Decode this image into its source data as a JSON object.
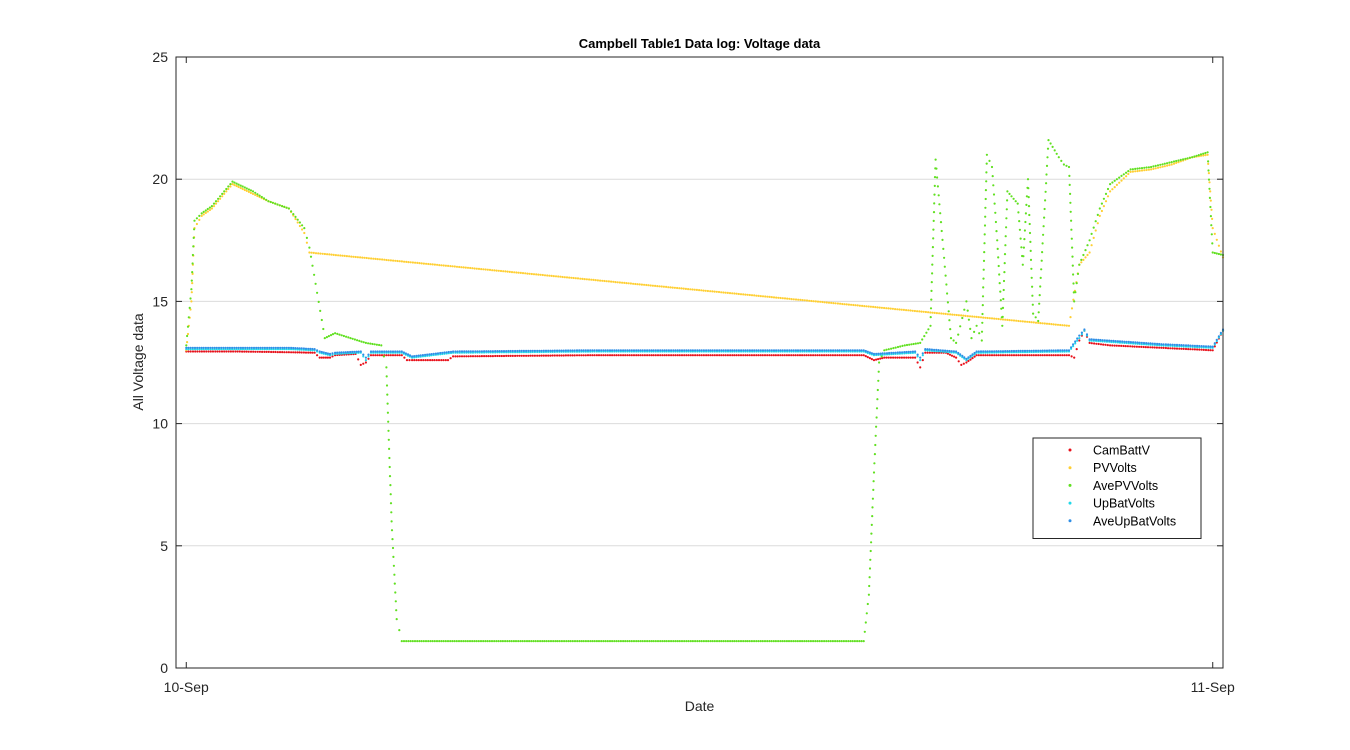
{
  "chart_data": {
    "type": "scatter",
    "title": "Campbell Table1 Data log: Voltage data",
    "xlabel": "Date",
    "ylabel": "All Voltage data",
    "x_tick_labels": [
      "10-Sep",
      "11-Sep"
    ],
    "x_range_fraction_of_day": [
      -0.01,
      1.01
    ],
    "ylim": [
      0,
      25
    ],
    "y_ticks": [
      0,
      5,
      10,
      15,
      20,
      25
    ],
    "grid": "horizontal",
    "legend_position": "lower-right",
    "x_unit": "fraction of day since 10-Sep",
    "series": [
      {
        "name": "CamBattV",
        "color": "#e8101a",
        "points": [
          [
            0.0,
            12.95
          ],
          [
            0.05,
            12.95
          ],
          [
            0.1,
            12.92
          ],
          [
            0.125,
            12.9
          ],
          [
            0.13,
            12.7
          ],
          [
            0.14,
            12.7
          ],
          [
            0.145,
            12.8
          ],
          [
            0.165,
            12.85
          ],
          [
            0.17,
            12.4
          ],
          [
            0.175,
            12.5
          ],
          [
            0.18,
            12.8
          ],
          [
            0.21,
            12.8
          ],
          [
            0.215,
            12.6
          ],
          [
            0.22,
            12.6
          ],
          [
            0.255,
            12.6
          ],
          [
            0.26,
            12.75
          ],
          [
            0.4,
            12.8
          ],
          [
            0.5,
            12.8
          ],
          [
            0.6,
            12.8
          ],
          [
            0.66,
            12.8
          ],
          [
            0.67,
            12.6
          ],
          [
            0.68,
            12.7
          ],
          [
            0.71,
            12.7
          ],
          [
            0.715,
            12.3
          ],
          [
            0.72,
            12.9
          ],
          [
            0.74,
            12.9
          ],
          [
            0.75,
            12.7
          ],
          [
            0.755,
            12.4
          ],
          [
            0.76,
            12.5
          ],
          [
            0.77,
            12.8
          ],
          [
            0.86,
            12.8
          ],
          [
            0.865,
            12.7
          ],
          [
            0.87,
            13.4
          ],
          [
            0.875,
            13.8
          ],
          [
            0.88,
            13.3
          ],
          [
            0.9,
            13.2
          ],
          [
            0.95,
            13.1
          ],
          [
            1.0,
            13.0
          ],
          [
            1.01,
            13.8
          ]
        ]
      },
      {
        "name": "PVVolts",
        "color": "#ffcf33",
        "points": [
          [
            0.0,
            13.0
          ],
          [
            0.005,
            15.0
          ],
          [
            0.008,
            18.0
          ],
          [
            0.015,
            18.5
          ],
          [
            0.025,
            18.8
          ],
          [
            0.035,
            19.3
          ],
          [
            0.045,
            19.8
          ],
          [
            0.055,
            19.6
          ],
          [
            0.065,
            19.4
          ],
          [
            0.08,
            19.1
          ],
          [
            0.1,
            18.8
          ],
          [
            0.115,
            17.8
          ],
          [
            0.12,
            17.0
          ],
          [
            0.86,
            14.0
          ],
          [
            0.87,
            16.5
          ],
          [
            0.88,
            17.0
          ],
          [
            0.89,
            18.5
          ],
          [
            0.9,
            19.5
          ],
          [
            0.92,
            20.3
          ],
          [
            0.94,
            20.4
          ],
          [
            0.96,
            20.6
          ],
          [
            0.98,
            20.9
          ],
          [
            0.995,
            21.0
          ],
          [
            1.0,
            18.0
          ],
          [
            1.01,
            16.8
          ]
        ]
      },
      {
        "name": "AvePVVolts",
        "color": "#60e020",
        "points": [
          [
            0.0,
            13.2
          ],
          [
            0.005,
            15.5
          ],
          [
            0.008,
            18.3
          ],
          [
            0.015,
            18.6
          ],
          [
            0.025,
            18.9
          ],
          [
            0.035,
            19.4
          ],
          [
            0.045,
            19.9
          ],
          [
            0.055,
            19.7
          ],
          [
            0.065,
            19.5
          ],
          [
            0.08,
            19.1
          ],
          [
            0.1,
            18.8
          ],
          [
            0.115,
            18.0
          ],
          [
            0.12,
            17.2
          ],
          [
            0.135,
            13.5
          ],
          [
            0.145,
            13.7
          ],
          [
            0.16,
            13.5
          ],
          [
            0.175,
            13.3
          ],
          [
            0.19,
            13.2
          ],
          [
            0.195,
            12.3
          ],
          [
            0.2,
            6.0
          ],
          [
            0.205,
            2.0
          ],
          [
            0.21,
            1.1
          ],
          [
            0.3,
            1.1
          ],
          [
            0.4,
            1.1
          ],
          [
            0.5,
            1.1
          ],
          [
            0.6,
            1.1
          ],
          [
            0.66,
            1.1
          ],
          [
            0.665,
            3.0
          ],
          [
            0.67,
            8.0
          ],
          [
            0.675,
            12.5
          ],
          [
            0.68,
            13.0
          ],
          [
            0.7,
            13.2
          ],
          [
            0.715,
            13.3
          ],
          [
            0.725,
            14.0
          ],
          [
            0.73,
            20.8
          ],
          [
            0.745,
            13.5
          ],
          [
            0.75,
            13.3
          ],
          [
            0.76,
            15.0
          ],
          [
            0.765,
            13.5
          ],
          [
            0.77,
            14.0
          ],
          [
            0.775,
            13.4
          ],
          [
            0.78,
            21.0
          ],
          [
            0.785,
            20.5
          ],
          [
            0.79,
            17.5
          ],
          [
            0.795,
            14.0
          ],
          [
            0.8,
            19.5
          ],
          [
            0.81,
            19.0
          ],
          [
            0.815,
            16.5
          ],
          [
            0.82,
            20.0
          ],
          [
            0.825,
            14.5
          ],
          [
            0.83,
            14.2
          ],
          [
            0.84,
            21.6
          ],
          [
            0.85,
            20.9
          ],
          [
            0.855,
            20.6
          ],
          [
            0.86,
            20.5
          ],
          [
            0.865,
            15.0
          ],
          [
            0.87,
            16.5
          ],
          [
            0.88,
            17.5
          ],
          [
            0.89,
            18.8
          ],
          [
            0.9,
            19.8
          ],
          [
            0.92,
            20.4
          ],
          [
            0.94,
            20.5
          ],
          [
            0.96,
            20.7
          ],
          [
            0.98,
            20.9
          ],
          [
            0.995,
            21.1
          ],
          [
            1.0,
            17.0
          ],
          [
            1.01,
            16.9
          ]
        ]
      },
      {
        "name": "UpBatVolts",
        "color": "#21d8e8",
        "points": [
          [
            0.0,
            13.05
          ],
          [
            0.1,
            13.05
          ],
          [
            0.125,
            13.0
          ],
          [
            0.13,
            12.9
          ],
          [
            0.14,
            12.8
          ],
          [
            0.145,
            12.85
          ],
          [
            0.17,
            12.9
          ],
          [
            0.175,
            12.6
          ],
          [
            0.18,
            12.9
          ],
          [
            0.21,
            12.9
          ],
          [
            0.22,
            12.7
          ],
          [
            0.26,
            12.9
          ],
          [
            0.4,
            12.95
          ],
          [
            0.5,
            12.95
          ],
          [
            0.66,
            12.95
          ],
          [
            0.67,
            12.8
          ],
          [
            0.71,
            12.9
          ],
          [
            0.715,
            12.6
          ],
          [
            0.72,
            13.0
          ],
          [
            0.75,
            12.9
          ],
          [
            0.76,
            12.6
          ],
          [
            0.77,
            12.9
          ],
          [
            0.86,
            12.95
          ],
          [
            0.87,
            13.5
          ],
          [
            0.875,
            13.8
          ],
          [
            0.88,
            13.4
          ],
          [
            0.95,
            13.2
          ],
          [
            1.0,
            13.1
          ],
          [
            1.01,
            13.8
          ]
        ]
      },
      {
        "name": "AveUpBatVolts",
        "color": "#2f8fe6",
        "points": [
          [
            0.0,
            13.1
          ],
          [
            0.1,
            13.1
          ],
          [
            0.125,
            13.05
          ],
          [
            0.13,
            12.95
          ],
          [
            0.14,
            12.85
          ],
          [
            0.145,
            12.9
          ],
          [
            0.17,
            12.95
          ],
          [
            0.175,
            12.7
          ],
          [
            0.18,
            12.95
          ],
          [
            0.21,
            12.95
          ],
          [
            0.22,
            12.75
          ],
          [
            0.26,
            12.95
          ],
          [
            0.4,
            13.0
          ],
          [
            0.5,
            13.0
          ],
          [
            0.66,
            13.0
          ],
          [
            0.67,
            12.85
          ],
          [
            0.71,
            12.95
          ],
          [
            0.715,
            12.7
          ],
          [
            0.72,
            13.05
          ],
          [
            0.75,
            12.95
          ],
          [
            0.76,
            12.65
          ],
          [
            0.77,
            12.95
          ],
          [
            0.86,
            13.0
          ],
          [
            0.87,
            13.6
          ],
          [
            0.875,
            13.85
          ],
          [
            0.88,
            13.45
          ],
          [
            0.95,
            13.25
          ],
          [
            1.0,
            13.15
          ],
          [
            1.01,
            13.85
          ]
        ]
      }
    ]
  }
}
